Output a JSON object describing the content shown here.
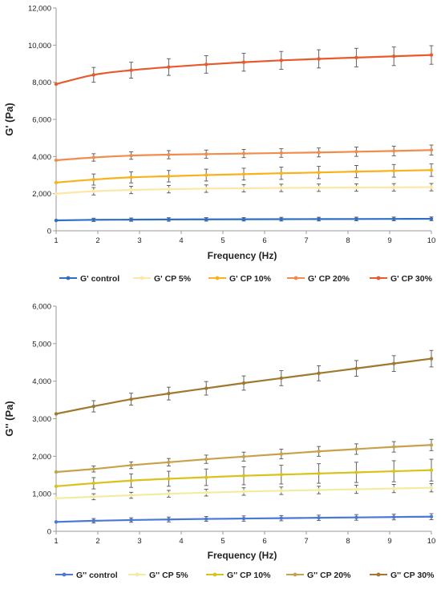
{
  "chart_data": [
    {
      "type": "line",
      "title": "",
      "xlabel": "Frequency (Hz)",
      "ylabel": "G' (Pa)",
      "xlim": [
        1,
        10
      ],
      "ylim": [
        0,
        12000
      ],
      "x_ticks": [
        "1",
        "2",
        "3",
        "4",
        "5",
        "6",
        "7",
        "8",
        "9",
        "10"
      ],
      "y_ticks": [
        "0",
        "2,000",
        "4,000",
        "6,000",
        "8,000",
        "10,000",
        "12,000"
      ],
      "legend_position": "bottom",
      "grid": false,
      "x": [
        1,
        1.9,
        2.8,
        3.7,
        4.6,
        5.5,
        6.4,
        7.3,
        8.2,
        9.1,
        10
      ],
      "series": [
        {
          "name": "G' control",
          "color": "#2e6fc4",
          "values": [
            560,
            590,
            600,
            610,
            615,
            620,
            625,
            630,
            635,
            640,
            645
          ],
          "error": [
            0,
            90,
            90,
            95,
            95,
            95,
            100,
            100,
            100,
            100,
            100
          ]
        },
        {
          "name": "G' CP 5%",
          "color": "#fde7a6",
          "values": [
            2000,
            2130,
            2200,
            2240,
            2270,
            2290,
            2310,
            2320,
            2330,
            2340,
            2350
          ],
          "error": [
            0,
            200,
            200,
            200,
            200,
            200,
            200,
            200,
            200,
            200,
            200
          ]
        },
        {
          "name": "G' CP 10%",
          "color": "#f7b21c",
          "values": [
            2600,
            2760,
            2880,
            2940,
            3000,
            3050,
            3100,
            3140,
            3190,
            3230,
            3270
          ],
          "error": [
            0,
            300,
            300,
            310,
            320,
            320,
            330,
            330,
            330,
            340,
            340
          ]
        },
        {
          "name": "G' CP 20%",
          "color": "#f28c4c",
          "values": [
            3800,
            3950,
            4050,
            4100,
            4130,
            4160,
            4190,
            4220,
            4260,
            4300,
            4350
          ],
          "error": [
            0,
            200,
            200,
            220,
            220,
            220,
            230,
            240,
            250,
            260,
            270
          ]
        },
        {
          "name": "G' CP 30%",
          "color": "#e8592c",
          "values": [
            7900,
            8400,
            8650,
            8820,
            8960,
            9080,
            9180,
            9260,
            9330,
            9400,
            9470
          ],
          "error": [
            0,
            400,
            430,
            450,
            470,
            480,
            480,
            490,
            500,
            500,
            500
          ]
        }
      ]
    },
    {
      "type": "line",
      "title": "",
      "xlabel": "Frequency (Hz)",
      "ylabel": "G'' (Pa)",
      "xlim": [
        1,
        10
      ],
      "ylim": [
        0,
        6000
      ],
      "x_ticks": [
        "1",
        "2",
        "3",
        "4",
        "5",
        "6",
        "7",
        "8",
        "9",
        "10"
      ],
      "y_ticks": [
        "0",
        "1,000",
        "2,000",
        "3,000",
        "4,000",
        "5,000",
        "6,000"
      ],
      "legend_position": "bottom",
      "grid": false,
      "x": [
        1,
        1.9,
        2.8,
        3.7,
        4.6,
        5.5,
        6.4,
        7.3,
        8.2,
        9.1,
        10
      ],
      "series": [
        {
          "name": "G'' control",
          "color": "#4a78d6",
          "values": [
            250,
            280,
            300,
            315,
            330,
            340,
            350,
            360,
            370,
            380,
            390
          ],
          "error": [
            0,
            60,
            60,
            65,
            65,
            70,
            70,
            70,
            75,
            75,
            80
          ]
        },
        {
          "name": "G'' CP 5%",
          "color": "#f3eca0",
          "values": [
            880,
            920,
            960,
            1000,
            1030,
            1060,
            1080,
            1100,
            1120,
            1140,
            1160
          ],
          "error": [
            0,
            80,
            80,
            90,
            90,
            100,
            100,
            100,
            110,
            110,
            110
          ]
        },
        {
          "name": "G'' CP 10%",
          "color": "#d9c21a",
          "values": [
            1200,
            1280,
            1350,
            1400,
            1440,
            1480,
            1510,
            1540,
            1570,
            1600,
            1630
          ],
          "error": [
            0,
            150,
            180,
            200,
            220,
            240,
            250,
            260,
            270,
            280,
            290
          ]
        },
        {
          "name": "G'' CP 20%",
          "color": "#c9a14a",
          "values": [
            1580,
            1660,
            1760,
            1840,
            1920,
            1990,
            2060,
            2130,
            2190,
            2250,
            2300
          ],
          "error": [
            0,
            80,
            90,
            100,
            110,
            120,
            130,
            130,
            140,
            140,
            150
          ]
        },
        {
          "name": "G'' CP 30%",
          "color": "#a0782e",
          "values": [
            3130,
            3330,
            3520,
            3670,
            3810,
            3950,
            4080,
            4210,
            4340,
            4470,
            4600
          ],
          "error": [
            0,
            150,
            160,
            170,
            180,
            190,
            200,
            200,
            210,
            210,
            220
          ]
        }
      ]
    }
  ]
}
